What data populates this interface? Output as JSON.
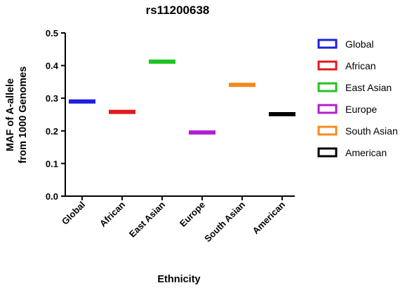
{
  "chart_data": {
    "type": "scatter",
    "title": "rs11200638",
    "xlabel": "Ethnicity",
    "ylabel": [
      "MAF of A-allele",
      "from 1000 Genomes"
    ],
    "ylim": [
      0,
      0.5
    ],
    "yticks": [
      "0.0",
      "0.1",
      "0.2",
      "0.3",
      "0.4",
      "0.5"
    ],
    "categories": [
      "Global",
      "African",
      "East Asian",
      "Europe",
      "South Asian",
      "American"
    ],
    "values": [
      0.29,
      0.258,
      0.412,
      0.195,
      0.341,
      0.251
    ],
    "colors": [
      "#1f1fe0",
      "#e41a1c",
      "#22c322",
      "#b020d0",
      "#f58a1f",
      "#000000"
    ],
    "legend_position": "right",
    "grid": false,
    "legend": [
      "Global",
      "African",
      "East Asian",
      "Europe",
      "South Asian",
      "American"
    ]
  }
}
